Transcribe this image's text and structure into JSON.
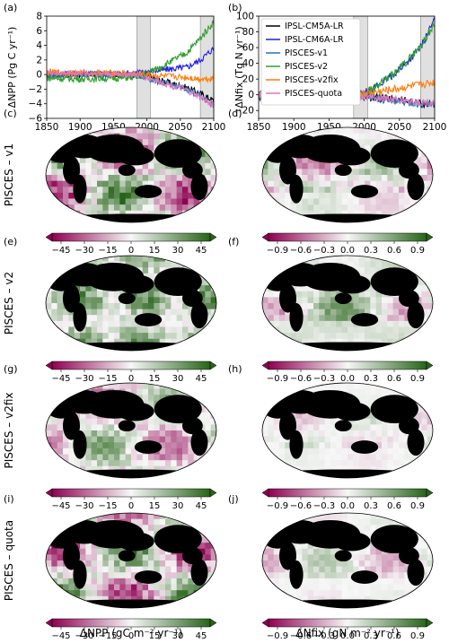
{
  "chart_data": [
    {
      "panel": "(a)",
      "type": "line",
      "ylabel": "ΔNPP (Pg C yr⁻¹)",
      "xlim": [
        1850,
        2100
      ],
      "ylim": [
        -6,
        8
      ],
      "xticks": [
        1850,
        1900,
        1950,
        2000,
        2050,
        2100
      ],
      "yticks": [
        -6,
        -4,
        -2,
        0,
        2,
        4,
        6,
        8
      ],
      "shaded_periods": [
        [
          1985,
          2005
        ],
        [
          2080,
          2100
        ]
      ],
      "series": [
        {
          "name": "IPSL-CM5A-LR",
          "color": "#000000",
          "x": [
            1850,
            1900,
            1950,
            1980,
            2000,
            2020,
            2040,
            2060,
            2080,
            2100
          ],
          "y": [
            0,
            0,
            0,
            0,
            -0.3,
            -0.8,
            -1.3,
            -1.8,
            -2.6,
            -3.6
          ]
        },
        {
          "name": "IPSL-CM6A-LR",
          "color": "#1f1fe0",
          "x": [
            1850,
            1900,
            1950,
            1980,
            2000,
            2020,
            2040,
            2060,
            2080,
            2100
          ],
          "y": [
            0,
            0.1,
            0.1,
            0.2,
            0.4,
            0.6,
            0.8,
            1.0,
            2.0,
            3.6
          ]
        },
        {
          "name": "PISCES-v1",
          "color": "#1f77b4",
          "x": [
            1850,
            1900,
            1950,
            1980,
            2000,
            2020,
            2040,
            2060,
            2080,
            2100
          ],
          "y": [
            0,
            0,
            0,
            -0.1,
            -0.5,
            -1.0,
            -1.5,
            -2.0,
            -3.0,
            -4.2
          ]
        },
        {
          "name": "PISCES-v2",
          "color": "#2ca02c",
          "x": [
            1850,
            1900,
            1950,
            1980,
            2000,
            2020,
            2040,
            2060,
            2080,
            2100
          ],
          "y": [
            -0.5,
            -0.6,
            -0.5,
            -0.4,
            0.2,
            1.0,
            2.0,
            3.0,
            5.0,
            7.2
          ]
        },
        {
          "name": "PISCES-v2fix",
          "color": "#ff7f0e",
          "x": [
            1850,
            1900,
            1950,
            1980,
            2000,
            2020,
            2040,
            2060,
            2080,
            2100
          ],
          "y": [
            0.3,
            0.2,
            0.2,
            0.1,
            0,
            -0.2,
            -0.3,
            -0.4,
            -0.6,
            -0.5
          ]
        },
        {
          "name": "PISCES-quota",
          "color": "#e377c2",
          "x": [
            1850,
            1900,
            1950,
            1980,
            2000,
            2020,
            2040,
            2060,
            2080,
            2100
          ],
          "y": [
            0.2,
            0.2,
            0.1,
            0,
            -0.4,
            -1.0,
            -1.6,
            -2.2,
            -3.1,
            -4.2
          ]
        }
      ]
    },
    {
      "panel": "(b)",
      "type": "line",
      "ylabel": "ΔNfix (Tg N yr⁻¹)",
      "xlim": [
        1850,
        2100
      ],
      "ylim": [
        -30,
        100
      ],
      "xticks": [
        1850,
        1900,
        1950,
        2000,
        2050,
        2100
      ],
      "yticks": [
        -20,
        0,
        20,
        40,
        60,
        80,
        100
      ],
      "shaded_periods": [
        [
          1985,
          2005
        ],
        [
          2080,
          2100
        ]
      ],
      "legend": "top-left",
      "series": [
        {
          "name": "IPSL-CM5A-LR",
          "color": "#000000",
          "x": [
            1850,
            1900,
            1950,
            1980,
            2000,
            2020,
            2040,
            2060,
            2080,
            2100
          ],
          "y": [
            0,
            0,
            0,
            0,
            -2,
            -4,
            -6,
            -8,
            -11,
            -12
          ]
        },
        {
          "name": "IPSL-CM6A-LR",
          "color": "#1f1fe0",
          "x": [
            1850,
            1900,
            1950,
            1980,
            2000,
            2020,
            2040,
            2060,
            2080,
            2100
          ],
          "y": [
            -5,
            -4,
            -3,
            -2,
            2,
            12,
            25,
            40,
            60,
            95
          ]
        },
        {
          "name": "PISCES-v1",
          "color": "#1f77b4",
          "x": [
            1850,
            1900,
            1950,
            1980,
            2000,
            2020,
            2040,
            2060,
            2080,
            2100
          ],
          "y": [
            0,
            0,
            0,
            0,
            -2,
            -5,
            -7,
            -10,
            -12,
            -14
          ]
        },
        {
          "name": "PISCES-v2",
          "color": "#2ca02c",
          "x": [
            1850,
            1900,
            1950,
            1980,
            2000,
            2020,
            2040,
            2060,
            2080,
            2100
          ],
          "y": [
            -5,
            -4,
            -3,
            -2,
            2,
            12,
            25,
            42,
            62,
            90
          ]
        },
        {
          "name": "PISCES-v2fix",
          "color": "#ff7f0e",
          "x": [
            1850,
            1900,
            1950,
            1980,
            2000,
            2020,
            2040,
            2060,
            2080,
            2100
          ],
          "y": [
            0,
            0,
            0,
            0,
            2,
            4,
            7,
            10,
            13,
            16
          ]
        },
        {
          "name": "PISCES-quota",
          "color": "#e377c2",
          "x": [
            1850,
            1900,
            1950,
            1980,
            2000,
            2020,
            2040,
            2060,
            2080,
            2100
          ],
          "y": [
            0,
            0,
            0,
            0,
            -2,
            -4,
            -6,
            -8,
            -10,
            -11
          ]
        }
      ]
    },
    {
      "panel": "(c)",
      "type": "heatmap",
      "row_label": "PISCES – v1",
      "variable": "ΔNPP",
      "colorbar_ticks": [
        "−45",
        "−30",
        "−15",
        "0",
        "15",
        "30",
        "45"
      ]
    },
    {
      "panel": "(d)",
      "type": "heatmap",
      "row_label": "PISCES – v1",
      "variable": "ΔNfix",
      "colorbar_ticks": [
        "−0.9",
        "−0.6",
        "−0.3",
        "0.0",
        "0.3",
        "0.6",
        "0.9"
      ]
    },
    {
      "panel": "(e)",
      "type": "heatmap",
      "row_label": "PISCES – v2",
      "variable": "ΔNPP",
      "colorbar_ticks": [
        "−45",
        "−30",
        "−15",
        "0",
        "15",
        "30",
        "45"
      ]
    },
    {
      "panel": "(f)",
      "type": "heatmap",
      "row_label": "PISCES – v2",
      "variable": "ΔNfix",
      "colorbar_ticks": [
        "−0.9",
        "−0.6",
        "−0.3",
        "0.0",
        "0.3",
        "0.6",
        "0.9"
      ]
    },
    {
      "panel": "(g)",
      "type": "heatmap",
      "row_label": "PISCES – v2fix",
      "variable": "ΔNPP",
      "colorbar_ticks": [
        "−45",
        "−30",
        "−15",
        "0",
        "15",
        "30",
        "45"
      ]
    },
    {
      "panel": "(h)",
      "type": "heatmap",
      "row_label": "PISCES – v2fix",
      "variable": "ΔNfix",
      "colorbar_ticks": [
        "−0.9",
        "−0.6",
        "−0.3",
        "0.0",
        "0.3",
        "0.6",
        "0.9"
      ]
    },
    {
      "panel": "(i)",
      "type": "heatmap",
      "row_label": "PISCES – quota",
      "variable": "ΔNPP",
      "colorbar_ticks": [
        "−45",
        "−30",
        "−15",
        "0",
        "15",
        "30",
        "45"
      ]
    },
    {
      "panel": "(j)",
      "type": "heatmap",
      "row_label": "PISCES – quota",
      "variable": "ΔNfix",
      "colorbar_ticks": [
        "−0.9",
        "−0.6",
        "−0.3",
        "0.0",
        "0.3",
        "0.6",
        "0.9"
      ]
    }
  ],
  "colorbar_labels": {
    "npp": "ΔNPP (gC m⁻² yr⁻¹)",
    "nfix": "ΔNfix (gN m⁻² yr⁻¹)"
  },
  "colormap": {
    "negative": "#8e0152",
    "zero": "#f7f7f7",
    "positive": "#276419"
  },
  "map_intensity": {
    "c": 0.55,
    "d": 0.35,
    "e": 0.55,
    "f": 0.3,
    "g": 0.35,
    "h": 0.15,
    "i": 0.5,
    "j": 0.2
  }
}
